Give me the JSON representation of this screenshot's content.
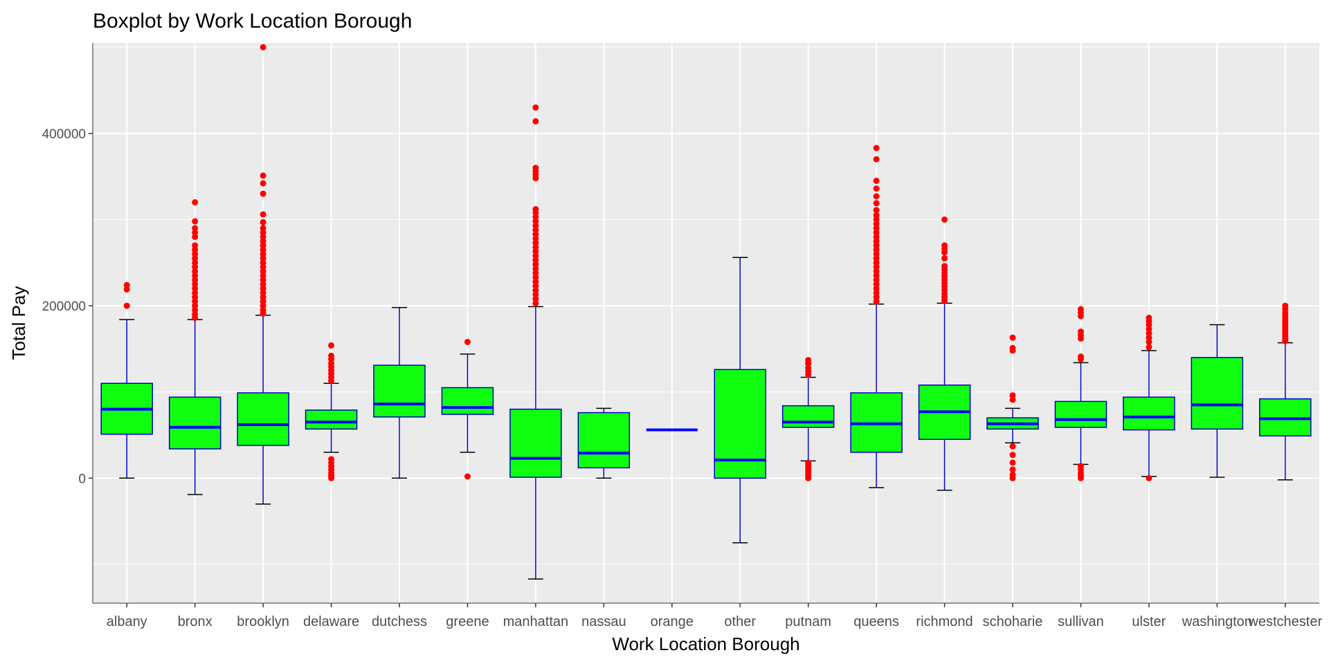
{
  "chart_data": {
    "type": "boxplot",
    "title": "Boxplot by Work Location Borough",
    "xlabel": "Work Location Borough",
    "ylabel": "Total Pay",
    "ylim": [
      -145000,
      505000
    ],
    "yticks": [
      0,
      200000,
      400000
    ],
    "ytick_labels": [
      "0",
      "200000",
      "400000"
    ],
    "grid": true,
    "legend": "none",
    "colors": {
      "box_fill": "#10ff10",
      "box_outline": "#0000cc",
      "median": "#0000ff",
      "outlier": "#ff0000",
      "panel_bg": "#ebebeb",
      "grid": "#ffffff"
    },
    "categories": [
      "albany",
      "bronx",
      "brooklyn",
      "delaware",
      "dutchess",
      "greene",
      "manhattan",
      "nassau",
      "orange",
      "other",
      "putnam",
      "queens",
      "richmond",
      "schoharie",
      "sullivan",
      "ulster",
      "washington",
      "westchester"
    ],
    "boxes": [
      {
        "category": "albany",
        "whisker_low": 0,
        "q1": 51000,
        "median": 80000,
        "q3": 110000,
        "whisker_high": 184000,
        "outliers": [
          200000,
          219000,
          224000
        ]
      },
      {
        "category": "bronx",
        "whisker_low": -19000,
        "q1": 34000,
        "median": 59000,
        "q3": 94000,
        "whisker_high": 184000,
        "outliers": [
          186000,
          190000,
          195000,
          200000,
          205000,
          210000,
          215000,
          220000,
          225000,
          230000,
          235000,
          240000,
          245000,
          250000,
          255000,
          260000,
          265000,
          270000,
          280000,
          285000,
          290000,
          298000,
          320000
        ]
      },
      {
        "category": "brooklyn",
        "whisker_low": -30000,
        "q1": 38000,
        "median": 62000,
        "q3": 99000,
        "whisker_high": 189000,
        "outliers": [
          191000,
          195000,
          200000,
          205000,
          210000,
          215000,
          220000,
          225000,
          230000,
          235000,
          240000,
          245000,
          250000,
          255000,
          260000,
          265000,
          270000,
          275000,
          280000,
          285000,
          290000,
          297000,
          306000,
          330000,
          342000,
          351000,
          500000
        ]
      },
      {
        "category": "delaware",
        "whisker_low": 30000,
        "q1": 57000,
        "median": 65000,
        "q3": 79000,
        "whisker_high": 110000,
        "outliers": [
          0,
          3000,
          6000,
          10000,
          14000,
          18000,
          22000,
          113000,
          117000,
          121000,
          125000,
          129000,
          133000,
          138000,
          142000,
          154000
        ]
      },
      {
        "category": "dutchess",
        "whisker_low": 0,
        "q1": 71000,
        "median": 86000,
        "q3": 131000,
        "whisker_high": 198000,
        "outliers": []
      },
      {
        "category": "greene",
        "whisker_low": 30000,
        "q1": 74000,
        "median": 82000,
        "q3": 105000,
        "whisker_high": 144000,
        "outliers": [
          2000,
          158000
        ]
      },
      {
        "category": "manhattan",
        "whisker_low": -117000,
        "q1": 1000,
        "median": 23000,
        "q3": 80000,
        "whisker_high": 199000,
        "outliers": [
          203000,
          208000,
          213000,
          218000,
          223000,
          228000,
          233000,
          238000,
          243000,
          248000,
          253000,
          258000,
          263000,
          268000,
          273000,
          278000,
          283000,
          288000,
          293000,
          298000,
          303000,
          308000,
          312000,
          348000,
          352000,
          356000,
          360000,
          414000,
          430000
        ]
      },
      {
        "category": "nassau",
        "whisker_low": 0,
        "q1": 12000,
        "median": 29000,
        "q3": 76000,
        "whisker_high": 81000,
        "outliers": []
      },
      {
        "category": "orange",
        "whisker_low": 56000,
        "q1": 56000,
        "median": 56000,
        "q3": 56000,
        "whisker_high": 56000,
        "outliers": []
      },
      {
        "category": "other",
        "whisker_low": -75000,
        "q1": 0,
        "median": 21000,
        "q3": 126000,
        "whisker_high": 256000,
        "outliers": []
      },
      {
        "category": "putnam",
        "whisker_low": 20000,
        "q1": 59000,
        "median": 65000,
        "q3": 84000,
        "whisker_high": 117000,
        "outliers": [
          0,
          3000,
          6000,
          9000,
          12000,
          15000,
          18000,
          120000,
          124000,
          128000,
          133000,
          137000
        ]
      },
      {
        "category": "queens",
        "whisker_low": -11000,
        "q1": 30000,
        "median": 63000,
        "q3": 99000,
        "whisker_high": 202000,
        "outliers": [
          205000,
          210000,
          215000,
          220000,
          225000,
          230000,
          235000,
          240000,
          245000,
          250000,
          255000,
          260000,
          265000,
          270000,
          275000,
          280000,
          285000,
          290000,
          295000,
          300000,
          305000,
          311000,
          319000,
          327000,
          336000,
          345000,
          370000,
          383000
        ]
      },
      {
        "category": "richmond",
        "whisker_low": -14000,
        "q1": 45000,
        "median": 77000,
        "q3": 108000,
        "whisker_high": 203000,
        "outliers": [
          206000,
          210000,
          214000,
          218000,
          222000,
          226000,
          230000,
          234000,
          238000,
          242000,
          246000,
          255000,
          262000,
          266000,
          270000,
          300000
        ]
      },
      {
        "category": "schoharie",
        "whisker_low": 41000,
        "q1": 57000,
        "median": 63000,
        "q3": 70000,
        "whisker_high": 81000,
        "outliers": [
          0,
          4000,
          10000,
          18000,
          27000,
          37000,
          91000,
          96000,
          148000,
          151000,
          163000
        ]
      },
      {
        "category": "sullivan",
        "whisker_low": 16000,
        "q1": 59000,
        "median": 68000,
        "q3": 89000,
        "whisker_high": 134000,
        "outliers": [
          0,
          3000,
          6000,
          10000,
          14000,
          138000,
          141000,
          162000,
          166000,
          170000,
          188000,
          192000,
          196000
        ]
      },
      {
        "category": "ulster",
        "whisker_low": 2000,
        "q1": 56000,
        "median": 71000,
        "q3": 94000,
        "whisker_high": 148000,
        "outliers": [
          0,
          152000,
          158000,
          163000,
          168000,
          173000,
          178000,
          182000,
          186000
        ]
      },
      {
        "category": "washington",
        "whisker_low": 1000,
        "q1": 57000,
        "median": 85000,
        "q3": 140000,
        "whisker_high": 178000,
        "outliers": []
      },
      {
        "category": "westchester",
        "whisker_low": -2000,
        "q1": 49000,
        "median": 69000,
        "q3": 92000,
        "whisker_high": 157000,
        "outliers": [
          159000,
          162000,
          165000,
          168000,
          171000,
          174000,
          177000,
          180000,
          183000,
          186000,
          189000,
          192000,
          196000,
          200000
        ]
      }
    ]
  }
}
